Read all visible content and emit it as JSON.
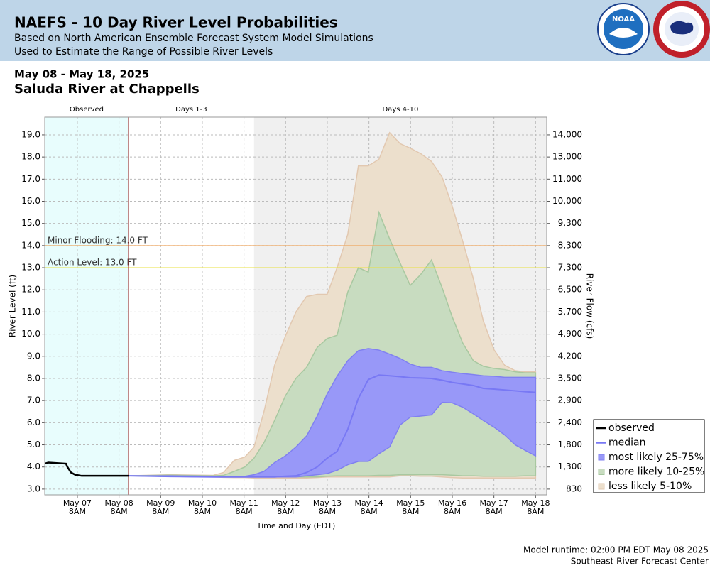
{
  "header": {
    "title": "NAEFS - 10 Day River Level Probabilities",
    "subtitle1": "Based on North American Ensemble Forecast System Model Simulations",
    "subtitle2": "Used to Estimate the Range of Possible River Levels",
    "logo": "NOAA"
  },
  "chart_data": {
    "type": "band",
    "date_range": "May 08 - May 18, 2025",
    "title": "Saluda River at Chappells",
    "ylabel": "River Level (ft)",
    "y2label": "River Flow (cfs)",
    "xlabel": "Time and Day (EDT)",
    "xlim": [
      6.55,
      18.6
    ],
    "ylim": [
      2.74,
      19.8
    ],
    "xticks": [
      {
        "value": 7.333,
        "label": "May 07"
      },
      {
        "value": 8.333,
        "label": "May 08"
      },
      {
        "value": 9.333,
        "label": "May 09"
      },
      {
        "value": 10.333,
        "label": "May 10"
      },
      {
        "value": 11.333,
        "label": "May 11"
      },
      {
        "value": 12.333,
        "label": "May 12"
      },
      {
        "value": 13.333,
        "label": "May 13"
      },
      {
        "value": 14.333,
        "label": "May 14"
      },
      {
        "value": 15.333,
        "label": "May 15"
      },
      {
        "value": 16.333,
        "label": "May 16"
      },
      {
        "value": 17.333,
        "label": "May 17"
      },
      {
        "value": 18.333,
        "label": "May 18"
      }
    ],
    "xtick_time": "8AM",
    "yticks": [
      {
        "value": 3,
        "label": "3.0"
      },
      {
        "value": 4,
        "label": "4.0"
      },
      {
        "value": 5,
        "label": "5.0"
      },
      {
        "value": 6,
        "label": "6.0"
      },
      {
        "value": 7,
        "label": "7.0"
      },
      {
        "value": 8,
        "label": "8.0"
      },
      {
        "value": 9,
        "label": "9.0"
      },
      {
        "value": 10,
        "label": "10.0"
      },
      {
        "value": 11,
        "label": "11.0"
      },
      {
        "value": 12,
        "label": "12.0"
      },
      {
        "value": 13,
        "label": "13.0"
      },
      {
        "value": 14,
        "label": "14.0"
      },
      {
        "value": 15,
        "label": "15.0"
      },
      {
        "value": 16,
        "label": "16.0"
      },
      {
        "value": 17,
        "label": "17.0"
      },
      {
        "value": 18,
        "label": "18.0"
      },
      {
        "value": 19,
        "label": "19.0"
      }
    ],
    "flow_labels": [
      "830",
      "1,300",
      "1,800",
      "2,400",
      "2,900",
      "3,500",
      "4,200",
      "4,900",
      "5,700",
      "6,500",
      "7,300",
      "8,300",
      "9,300",
      "10,000",
      "11,000",
      "13,000",
      "14,000"
    ],
    "grid": true,
    "periods": [
      {
        "label": "Observed",
        "start": 6.55,
        "end": 8.56,
        "color": "#e8fdfd"
      },
      {
        "label": "Days 1-3",
        "start": 8.56,
        "end": 11.575,
        "color": "#ffffff"
      },
      {
        "label": "Days 4-10",
        "start": 11.575,
        "end": 18.6,
        "color": "#f0f0f0"
      }
    ],
    "forecast_start_color": "#a03030",
    "thresholds": [
      {
        "label": "Minor Flooding: 14.0 FT",
        "value": 14,
        "color": "#f0a860"
      },
      {
        "label": "Action Level: 13.0 FT",
        "value": 13,
        "color": "#e8e040"
      }
    ],
    "observed": {
      "name": "observed",
      "color": "#000000",
      "x": [
        6.55,
        6.635,
        7.06,
        7.095,
        7.18,
        7.28,
        7.435,
        8.56
      ],
      "values": [
        4.15,
        4.2,
        4.15,
        4.0,
        3.75,
        3.65,
        3.6,
        3.6
      ]
    },
    "forecast_x": [
      8.56,
      9.565,
      10.587,
      10.843,
      11.098,
      11.354,
      11.575,
      11.813,
      12.069,
      12.324,
      12.58,
      12.836,
      13.091,
      13.33,
      13.568,
      13.824,
      14.079,
      14.318,
      14.573,
      14.829,
      15.084,
      15.323,
      15.578,
      15.834,
      16.089,
      16.328,
      16.583,
      16.839,
      17.078,
      17.333,
      17.589,
      17.844,
      18.083,
      18.333
    ],
    "median": {
      "name": "median",
      "color": "#7878f4",
      "values": [
        3.6,
        3.57,
        3.55,
        3.55,
        3.55,
        3.55,
        3.55,
        3.55,
        3.55,
        3.58,
        3.6,
        3.75,
        4.0,
        4.4,
        4.7,
        5.7,
        7.1,
        7.95,
        8.15,
        8.12,
        8.08,
        8.03,
        8.02,
        8.0,
        7.92,
        7.82,
        7.75,
        7.68,
        7.55,
        7.52,
        7.48,
        7.44,
        7.4,
        7.37
      ]
    },
    "bands": [
      {
        "name": "less likely 5-10%",
        "color": "#ecdfcc",
        "stroke": "#e2c8b0",
        "high": [
          3.6,
          3.65,
          3.62,
          3.75,
          4.3,
          4.45,
          4.9,
          6.5,
          8.6,
          9.9,
          11.0,
          11.7,
          11.8,
          11.8,
          13.0,
          14.5,
          17.6,
          17.6,
          17.9,
          19.1,
          18.6,
          18.4,
          18.15,
          17.8,
          17.1,
          15.8,
          14.2,
          12.5,
          10.6,
          9.3,
          8.6,
          8.35,
          8.3,
          8.3
        ],
        "low": [
          3.6,
          3.58,
          3.55,
          3.53,
          3.52,
          3.52,
          3.5,
          3.5,
          3.5,
          3.5,
          3.5,
          3.5,
          3.52,
          3.55,
          3.55,
          3.55,
          3.55,
          3.55,
          3.55,
          3.55,
          3.6,
          3.6,
          3.58,
          3.58,
          3.55,
          3.52,
          3.5,
          3.5,
          3.5,
          3.5,
          3.5,
          3.5,
          3.5,
          3.5
        ]
      },
      {
        "name": "more likely 10-25%",
        "color": "#c8dcc0",
        "stroke": "#a8c8a0",
        "high": [
          3.6,
          3.63,
          3.6,
          3.62,
          3.8,
          4.0,
          4.4,
          5.1,
          6.1,
          7.2,
          8.0,
          8.5,
          9.4,
          9.8,
          9.95,
          11.9,
          13.0,
          12.8,
          15.5,
          14.3,
          13.2,
          12.2,
          12.7,
          13.35,
          12.1,
          10.8,
          9.6,
          8.8,
          8.55,
          8.45,
          8.4,
          8.3,
          8.25,
          8.25
        ],
        "low": [
          3.6,
          3.58,
          3.55,
          3.55,
          3.55,
          3.55,
          3.55,
          3.55,
          3.55,
          3.55,
          3.55,
          3.55,
          3.55,
          3.58,
          3.6,
          3.6,
          3.6,
          3.6,
          3.62,
          3.62,
          3.65,
          3.65,
          3.65,
          3.65,
          3.65,
          3.63,
          3.6,
          3.6,
          3.58,
          3.58,
          3.58,
          3.58,
          3.6,
          3.6
        ]
      },
      {
        "name": "most likely 25-75%",
        "color": "#9898f8",
        "stroke": "#8080f0",
        "high": [
          3.6,
          3.6,
          3.58,
          3.58,
          3.58,
          3.58,
          3.65,
          3.8,
          4.2,
          4.5,
          4.9,
          5.4,
          6.3,
          7.3,
          8.1,
          8.8,
          9.25,
          9.35,
          9.28,
          9.1,
          8.9,
          8.65,
          8.5,
          8.5,
          8.35,
          8.28,
          8.22,
          8.17,
          8.12,
          8.1,
          8.05,
          8.05,
          8.05,
          8.05
        ],
        "low": [
          3.6,
          3.57,
          3.55,
          3.55,
          3.55,
          3.55,
          3.55,
          3.55,
          3.55,
          3.55,
          3.55,
          3.6,
          3.65,
          3.7,
          3.85,
          4.1,
          4.25,
          4.25,
          4.6,
          4.9,
          5.9,
          6.25,
          6.3,
          6.35,
          6.92,
          6.9,
          6.7,
          6.4,
          6.1,
          5.8,
          5.45,
          5.0,
          4.75,
          4.5
        ]
      }
    ],
    "legend": "lower right"
  },
  "footer": {
    "runtime": "Model runtime: 02:00 PM EDT May 08 2025",
    "center": "Southeast River Forecast Center"
  }
}
